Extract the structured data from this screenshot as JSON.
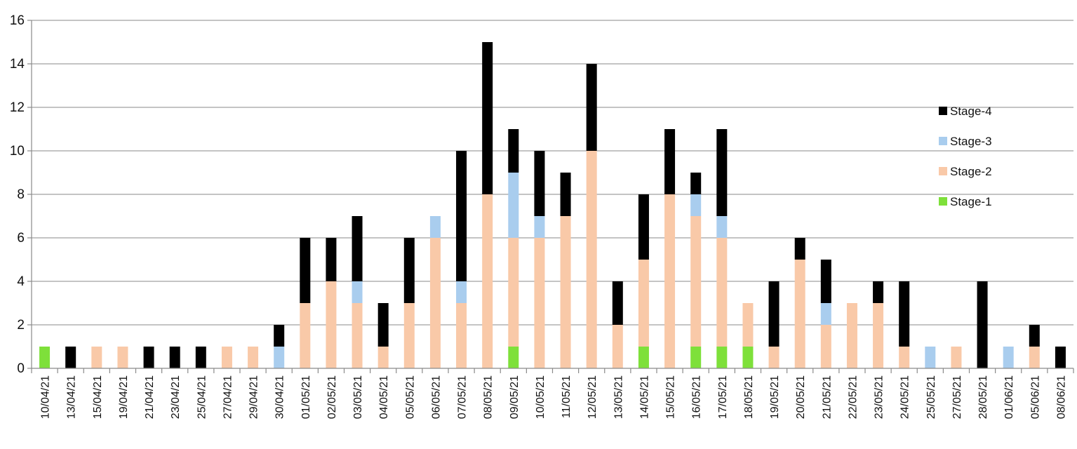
{
  "chart_data": {
    "type": "bar",
    "stacked": true,
    "categories": [
      "10/04/21",
      "13/04/21",
      "15/04/21",
      "19/04/21",
      "21/04/21",
      "23/04/21",
      "25/04/21",
      "27/04/21",
      "29/04/21",
      "30/04/21",
      "01/05/21",
      "02/05/21",
      "03/05/21",
      "04/05/21",
      "05/05/21",
      "06/05/21",
      "07/05/21",
      "08/05/21",
      "09/05/21",
      "10/05/21",
      "11/05/21",
      "12/05/21",
      "13/05/21",
      "14/05/21",
      "15/05/21",
      "16/05/21",
      "17/05/21",
      "18/05/21",
      "19/05/21",
      "20/05/21",
      "21/05/21",
      "22/05/21",
      "23/05/21",
      "24/05/21",
      "25/05/21",
      "27/05/21",
      "28/05/21",
      "01/06/21",
      "05/06/21",
      "08/06/21"
    ],
    "series": [
      {
        "name": "Stage-1",
        "color": "#7ee03a",
        "values": [
          1,
          0,
          0,
          0,
          0,
          0,
          0,
          0,
          0,
          0,
          0,
          0,
          0,
          0,
          0,
          0,
          0,
          0,
          1,
          0,
          0,
          0,
          0,
          1,
          0,
          1,
          1,
          1,
          0,
          0,
          0,
          0,
          0,
          0,
          0,
          0,
          0,
          0,
          0,
          0
        ]
      },
      {
        "name": "Stage-2",
        "color": "#f9c9a8",
        "values": [
          0,
          0,
          1,
          1,
          0,
          0,
          0,
          1,
          1,
          0,
          3,
          4,
          3,
          1,
          3,
          6,
          3,
          8,
          5,
          6,
          7,
          10,
          2,
          4,
          8,
          6,
          5,
          2,
          1,
          5,
          2,
          3,
          3,
          1,
          0,
          1,
          0,
          0,
          1,
          0
        ]
      },
      {
        "name": "Stage-3",
        "color": "#a9cdee",
        "values": [
          0,
          0,
          0,
          0,
          0,
          0,
          0,
          0,
          0,
          1,
          0,
          0,
          1,
          0,
          0,
          1,
          1,
          0,
          3,
          1,
          0,
          0,
          0,
          0,
          0,
          1,
          1,
          0,
          0,
          0,
          1,
          0,
          0,
          0,
          1,
          0,
          0,
          1,
          0,
          0
        ]
      },
      {
        "name": "Stage-4",
        "color": "#000000",
        "values": [
          0,
          1,
          0,
          0,
          1,
          1,
          1,
          0,
          0,
          1,
          3,
          2,
          3,
          2,
          3,
          0,
          6,
          7,
          2,
          3,
          2,
          4,
          2,
          3,
          3,
          1,
          4,
          0,
          3,
          1,
          2,
          0,
          1,
          3,
          0,
          0,
          4,
          0,
          1,
          1
        ]
      }
    ],
    "legend_order": [
      "Stage-4",
      "Stage-3",
      "Stage-2",
      "Stage-1"
    ],
    "legend_position": "right",
    "ylim": [
      0,
      16
    ],
    "yticks": [
      "0",
      "2",
      "4",
      "6",
      "8",
      "10",
      "12",
      "14",
      "16"
    ],
    "xlabel": "",
    "ylabel": "",
    "title": "",
    "grid": true
  }
}
